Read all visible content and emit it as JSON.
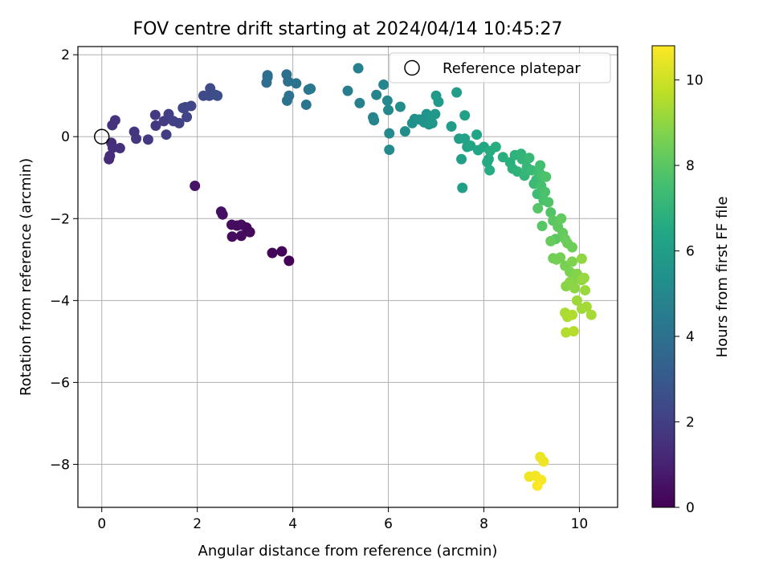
{
  "chart_data": {
    "type": "scatter",
    "title": "FOV centre drift starting at 2024/04/14 10:45:27",
    "xlabel": "Angular distance from reference (arcmin)",
    "ylabel": "Rotation from reference (arcmin)",
    "xlim": [
      -0.5,
      10.8
    ],
    "ylim": [
      -9.05,
      2.2
    ],
    "xticks": [
      0,
      2,
      4,
      6,
      8,
      10
    ],
    "yticks": [
      2,
      0,
      -2,
      -4,
      -6,
      -8
    ],
    "xtick_labels": [
      "0",
      "2",
      "4",
      "6",
      "8",
      "10"
    ],
    "ytick_labels": [
      "2",
      "0",
      "−2",
      "−4",
      "−6",
      "−8"
    ],
    "grid": true,
    "legend": {
      "position": "top-right",
      "entries": [
        "Reference platepar"
      ]
    },
    "reference_point": {
      "x": 0,
      "y": 0,
      "marker": "open-circle"
    },
    "colorbar": {
      "label": "Hours from first FF file",
      "range": [
        0,
        10.8
      ],
      "ticks": [
        0,
        2,
        4,
        6,
        8,
        10
      ],
      "tick_labels": [
        "0",
        "2",
        "4",
        "6",
        "8",
        "10"
      ],
      "colormap": "viridis"
    },
    "points": [
      [
        3.92,
        -3.03,
        0.05
      ],
      [
        3.77,
        -2.8,
        0.1
      ],
      [
        3.57,
        -2.84,
        0.15
      ],
      [
        3.1,
        -2.33,
        0.25
      ],
      [
        3.03,
        -2.22,
        0.28
      ],
      [
        2.92,
        -2.42,
        0.3
      ],
      [
        2.83,
        -2.17,
        0.32
      ],
      [
        2.73,
        -2.44,
        0.33
      ],
      [
        2.92,
        -2.15,
        0.35
      ],
      [
        2.72,
        -2.15,
        0.37
      ],
      [
        2.53,
        -1.9,
        0.45
      ],
      [
        2.5,
        -1.83,
        0.47
      ],
      [
        1.95,
        -1.2,
        0.6
      ],
      [
        0.15,
        -0.55,
        1.3
      ],
      [
        0.17,
        -0.47,
        1.35
      ],
      [
        0.2,
        -0.15,
        1.4
      ],
      [
        0.23,
        -0.27,
        1.45
      ],
      [
        0.38,
        -0.28,
        1.5
      ],
      [
        0.22,
        0.28,
        1.55
      ],
      [
        0.28,
        0.4,
        1.6
      ],
      [
        0.68,
        0.12,
        1.65
      ],
      [
        0.72,
        -0.05,
        1.7
      ],
      [
        0.97,
        -0.07,
        1.75
      ],
      [
        1.13,
        0.27,
        1.8
      ],
      [
        1.12,
        0.53,
        1.85
      ],
      [
        1.3,
        0.38,
        1.9
      ],
      [
        1.35,
        0.05,
        1.95
      ],
      [
        1.4,
        0.55,
        2.0
      ],
      [
        1.5,
        0.38,
        2.05
      ],
      [
        1.62,
        0.33,
        2.1
      ],
      [
        1.75,
        0.72,
        2.15
      ],
      [
        1.78,
        0.48,
        2.2
      ],
      [
        1.87,
        0.75,
        2.25
      ],
      [
        1.7,
        0.7,
        2.3
      ],
      [
        2.13,
        1.0,
        2.4
      ],
      [
        2.25,
        1.0,
        2.45
      ],
      [
        2.27,
        1.18,
        2.5
      ],
      [
        2.38,
        1.02,
        2.55
      ],
      [
        2.42,
        1.0,
        2.6
      ],
      [
        3.45,
        1.32,
        3.8
      ],
      [
        3.47,
        1.5,
        3.85
      ],
      [
        3.47,
        1.45,
        3.9
      ],
      [
        3.87,
        1.52,
        3.95
      ],
      [
        3.9,
        1.35,
        4.0
      ],
      [
        3.92,
        1.0,
        4.05
      ],
      [
        3.88,
        0.88,
        4.1
      ],
      [
        4.07,
        1.3,
        4.15
      ],
      [
        4.28,
        0.78,
        4.2
      ],
      [
        4.33,
        1.15,
        4.25
      ],
      [
        4.37,
        1.17,
        4.3
      ],
      [
        5.15,
        1.12,
        4.6
      ],
      [
        5.37,
        1.67,
        4.65
      ],
      [
        5.4,
        0.82,
        4.7
      ],
      [
        5.68,
        0.47,
        4.8
      ],
      [
        5.7,
        0.4,
        4.85
      ],
      [
        5.75,
        1.02,
        4.9
      ],
      [
        5.9,
        1.27,
        4.95
      ],
      [
        5.98,
        0.88,
        5.0
      ],
      [
        6.0,
        0.65,
        5.05
      ],
      [
        6.02,
        0.08,
        5.1
      ],
      [
        6.02,
        -0.32,
        5.15
      ],
      [
        6.25,
        0.73,
        5.2
      ],
      [
        6.35,
        0.13,
        5.25
      ],
      [
        6.5,
        0.33,
        5.35
      ],
      [
        6.55,
        0.43,
        5.4
      ],
      [
        6.65,
        0.42,
        5.45
      ],
      [
        6.75,
        0.35,
        5.5
      ],
      [
        6.8,
        0.55,
        5.55
      ],
      [
        6.85,
        0.3,
        5.6
      ],
      [
        6.9,
        0.48,
        5.65
      ],
      [
        6.92,
        0.33,
        5.7
      ],
      [
        6.98,
        0.55,
        5.75
      ],
      [
        7.0,
        1.0,
        5.8
      ],
      [
        7.05,
        0.85,
        5.85
      ],
      [
        7.32,
        0.25,
        5.9
      ],
      [
        7.43,
        1.08,
        5.95
      ],
      [
        7.48,
        -0.05,
        6.0
      ],
      [
        7.53,
        -0.55,
        6.05
      ],
      [
        7.55,
        -1.25,
        6.1
      ],
      [
        7.6,
        0.52,
        6.15
      ],
      [
        7.6,
        -0.05,
        6.2
      ],
      [
        7.65,
        -0.25,
        6.25
      ],
      [
        7.72,
        -0.22,
        6.3
      ],
      [
        7.85,
        0.05,
        6.35
      ],
      [
        7.88,
        -0.33,
        6.4
      ],
      [
        8.0,
        -0.25,
        6.45
      ],
      [
        8.07,
        -0.62,
        6.5
      ],
      [
        8.1,
        -0.55,
        6.55
      ],
      [
        8.12,
        -0.82,
        6.6
      ],
      [
        8.13,
        -0.35,
        6.65
      ],
      [
        8.25,
        -0.25,
        6.7
      ],
      [
        8.4,
        -0.5,
        6.75
      ],
      [
        8.55,
        -0.63,
        6.8
      ],
      [
        8.6,
        -0.78,
        6.85
      ],
      [
        8.65,
        -0.45,
        6.9
      ],
      [
        8.7,
        -0.85,
        6.95
      ],
      [
        8.78,
        -0.42,
        7.0
      ],
      [
        8.8,
        -0.55,
        7.05
      ],
      [
        8.85,
        -0.95,
        7.1
      ],
      [
        8.9,
        -0.75,
        7.15
      ],
      [
        8.95,
        -0.52,
        7.2
      ],
      [
        9.0,
        -0.82,
        7.25
      ],
      [
        9.05,
        -1.15,
        7.3
      ],
      [
        9.1,
        -1.05,
        7.35
      ],
      [
        9.12,
        -1.4,
        7.4
      ],
      [
        9.15,
        -0.85,
        7.45
      ],
      [
        9.18,
        -0.7,
        7.5
      ],
      [
        9.2,
        -1.2,
        7.55
      ],
      [
        9.22,
        -0.95,
        7.6
      ],
      [
        9.25,
        -1.55,
        7.65
      ],
      [
        9.28,
        -1.35,
        7.7
      ],
      [
        9.3,
        -0.98,
        7.75
      ],
      [
        9.35,
        -1.6,
        7.8
      ],
      [
        9.4,
        -1.85,
        7.85
      ],
      [
        9.13,
        -1.75,
        7.9
      ],
      [
        9.22,
        -2.18,
        7.95
      ],
      [
        9.45,
        -2.05,
        8.0
      ],
      [
        9.5,
        -2.5,
        8.05
      ],
      [
        9.55,
        -2.2,
        8.1
      ],
      [
        9.62,
        -2.0,
        8.15
      ],
      [
        9.65,
        -2.35,
        8.2
      ],
      [
        9.4,
        -2.55,
        8.25
      ],
      [
        9.7,
        -2.5,
        8.3
      ],
      [
        9.75,
        -2.6,
        8.35
      ],
      [
        9.85,
        -2.7,
        8.4
      ],
      [
        9.45,
        -2.97,
        8.45
      ],
      [
        9.52,
        -3.0,
        8.5
      ],
      [
        9.6,
        -2.95,
        8.55
      ],
      [
        9.7,
        -3.15,
        8.6
      ],
      [
        9.8,
        -3.3,
        8.65
      ],
      [
        9.85,
        -3.05,
        8.7
      ],
      [
        9.9,
        -3.5,
        8.75
      ],
      [
        9.95,
        -3.35,
        8.8
      ],
      [
        9.72,
        -3.65,
        8.85
      ],
      [
        9.8,
        -3.55,
        8.9
      ],
      [
        9.9,
        -3.7,
        8.95
      ],
      [
        10.05,
        -2.98,
        9.0
      ],
      [
        10.05,
        -3.5,
        9.05
      ],
      [
        10.1,
        -3.45,
        9.1
      ],
      [
        10.12,
        -3.75,
        9.15
      ],
      [
        9.95,
        -4.0,
        9.2
      ],
      [
        10.05,
        -4.2,
        9.25
      ],
      [
        10.15,
        -4.15,
        9.3
      ],
      [
        10.25,
        -4.35,
        9.35
      ],
      [
        9.7,
        -4.3,
        9.4
      ],
      [
        9.75,
        -4.4,
        9.45
      ],
      [
        9.85,
        -4.35,
        9.5
      ],
      [
        9.72,
        -4.78,
        9.55
      ],
      [
        9.88,
        -4.75,
        9.6
      ],
      [
        9.18,
        -7.82,
        10.5
      ],
      [
        9.25,
        -7.93,
        10.55
      ],
      [
        8.95,
        -8.3,
        10.6
      ],
      [
        9.08,
        -8.28,
        10.65
      ],
      [
        9.2,
        -8.38,
        10.7
      ],
      [
        9.12,
        -8.52,
        10.75
      ]
    ]
  }
}
